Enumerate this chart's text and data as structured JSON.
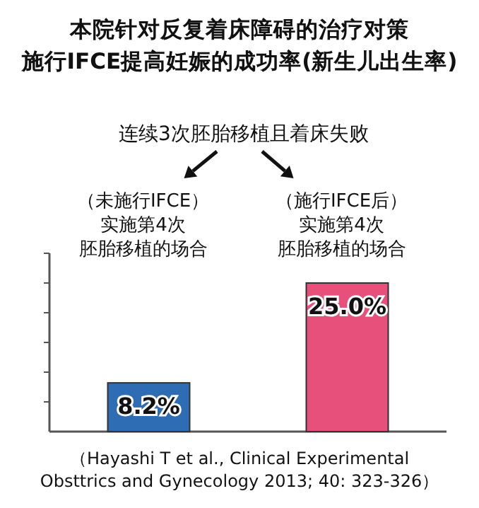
{
  "chart_data": {
    "type": "bar",
    "title": "本院针对反复着床障碍的治疗对策",
    "subtitle": "施行IFCE提高妊娠的成功率(新生儿出生率)",
    "annotations": [
      "连续3次胚胎移植且着床失败",
      "（Hayashi T et al., Clinical Experimental\nObsttrics and Gynecology 2013; 40: 323-326）"
    ],
    "categories": [
      "（未施行IFCE）实施第4次胚胎移植的场合",
      "（施行IFCE后）实施第4次胚胎移植的场合"
    ],
    "values": [
      8.2,
      25.0
    ],
    "colors": [
      "#2e6db4",
      "#e6507a"
    ],
    "value_labels": [
      "8.2%",
      "25.0%"
    ],
    "ylim": [
      0,
      30
    ],
    "yticks": [
      {
        "value": 5,
        "label": null
      },
      {
        "value": 10,
        "label": null
      },
      {
        "value": 15,
        "label": null
      },
      {
        "value": 20,
        "label": null
      },
      {
        "value": 25,
        "label": null
      },
      {
        "value": 30,
        "label": null
      }
    ],
    "tick_labels": "x"
  }
}
